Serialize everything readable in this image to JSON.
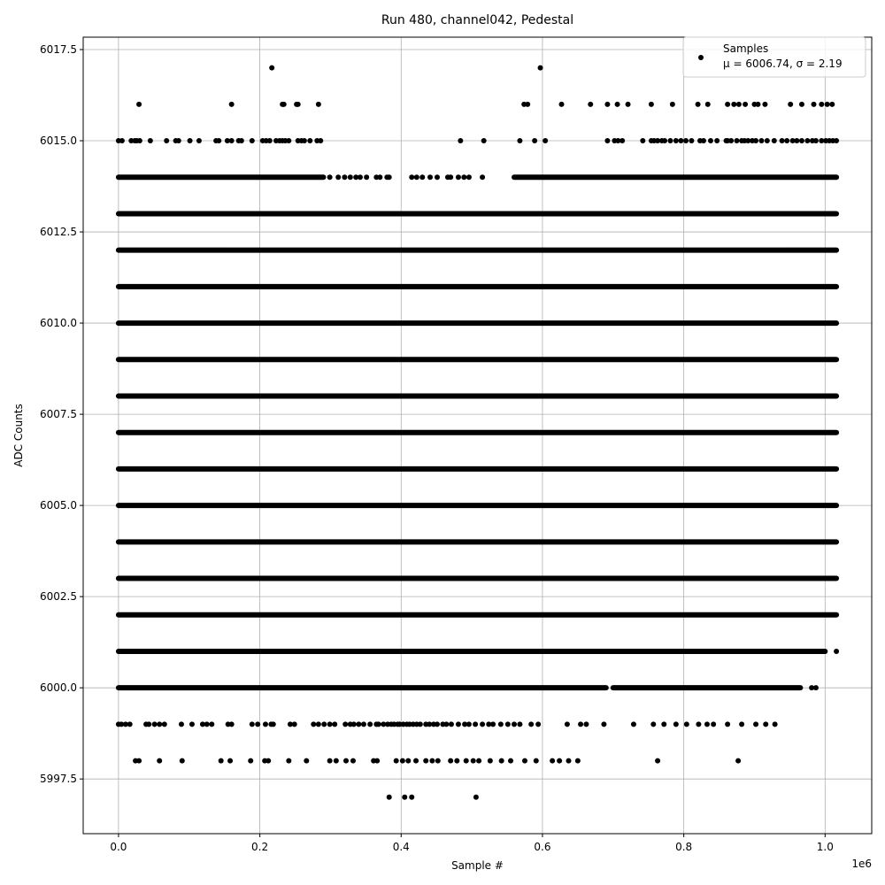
{
  "chart_data": {
    "type": "scatter",
    "title": "Run 480, channel042, Pedestal",
    "xlabel": "Sample #",
    "ylabel": "ADC Counts",
    "x_offset_label": "1e6",
    "xlim": [
      -50000,
      1066000
    ],
    "ylim": [
      5996.0,
      6017.84
    ],
    "xticks": [
      0,
      200000,
      400000,
      600000,
      800000,
      1000000
    ],
    "xtick_labels": [
      "0.0",
      "0.2",
      "0.4",
      "0.6",
      "0.8",
      "1.0"
    ],
    "yticks": [
      5997.5,
      6000.0,
      6002.5,
      6005.0,
      6007.5,
      6010.0,
      6012.5,
      6015.0,
      6017.5
    ],
    "ytick_labels": [
      "5997.5",
      "6000.0",
      "6002.5",
      "6005.0",
      "6007.5",
      "6010.0",
      "6012.5",
      "6015.0",
      "6017.5"
    ],
    "grid": true,
    "marker_color": "#000000",
    "legend": {
      "placement": "top-right",
      "entries": [
        {
          "label": "Samples",
          "stats": "μ = 6006.74, σ = 2.19"
        }
      ]
    },
    "rows": [
      {
        "y": 6017,
        "segments": [],
        "points": [
          217000,
          597000
        ]
      },
      {
        "y": 6016,
        "segments": [],
        "points": [
          29000,
          160000,
          232000,
          234000,
          252000,
          254000,
          283000,
          574000,
          579000,
          627000,
          668000,
          692000,
          706000,
          721000,
          754000,
          784000,
          820000,
          834000,
          862000,
          871000,
          878000,
          887000,
          900000,
          905000,
          915000,
          951000,
          967000,
          984000,
          995000,
          1003000,
          1010000
        ]
      },
      {
        "y": 6015,
        "segments": [],
        "points": [
          0,
          5000,
          18000,
          23000,
          26000,
          30000,
          45000,
          68000,
          81000,
          85000,
          101000,
          114000,
          138000,
          142000,
          154000,
          160000,
          170000,
          174000,
          189000,
          204000,
          209000,
          214000,
          223000,
          228000,
          232000,
          236000,
          241000,
          254000,
          259000,
          263000,
          271000,
          281000,
          286000,
          484000,
          517000,
          568000,
          589000,
          604000,
          692000,
          702000,
          707000,
          713000,
          742000,
          754000,
          758000,
          763000,
          769000,
          773000,
          781000,
          789000,
          796000,
          803000,
          811000,
          823000,
          828000,
          838000,
          847000,
          860000,
          862000,
          867000,
          875000,
          882000,
          886000,
          891000,
          897000,
          902000,
          910000,
          918000,
          928000,
          939000,
          946000,
          954000,
          960000,
          967000,
          975000,
          982000,
          987000,
          995000,
          1001000,
          1006000,
          1011000,
          1016000
        ]
      },
      {
        "y": 6014,
        "segments": [
          [
            0,
            290000
          ],
          [
            560000,
            1016000
          ]
        ],
        "points": [
          299000,
          311000,
          320000,
          328000,
          336000,
          342000,
          351000,
          365000,
          370000,
          380000,
          383000,
          415000,
          422000,
          430000,
          441000,
          451000,
          466000,
          470000,
          481000,
          489000,
          496000,
          515000
        ]
      },
      {
        "y": 6013,
        "segments": [
          [
            0,
            1016000
          ]
        ],
        "points": []
      },
      {
        "y": 6012,
        "segments": [
          [
            0,
            1016000
          ]
        ],
        "points": []
      },
      {
        "y": 6011,
        "segments": [
          [
            0,
            1016000
          ]
        ],
        "points": []
      },
      {
        "y": 6010,
        "segments": [
          [
            0,
            1016000
          ]
        ],
        "points": []
      },
      {
        "y": 6009,
        "segments": [
          [
            0,
            1016000
          ]
        ],
        "points": []
      },
      {
        "y": 6008,
        "segments": [
          [
            0,
            1016000
          ]
        ],
        "points": []
      },
      {
        "y": 6007,
        "segments": [
          [
            0,
            1016000
          ]
        ],
        "points": []
      },
      {
        "y": 6006,
        "segments": [
          [
            0,
            1016000
          ]
        ],
        "points": []
      },
      {
        "y": 6005,
        "segments": [
          [
            0,
            1016000
          ]
        ],
        "points": []
      },
      {
        "y": 6004,
        "segments": [
          [
            0,
            1016000
          ]
        ],
        "points": []
      },
      {
        "y": 6003,
        "segments": [
          [
            0,
            1016000
          ]
        ],
        "points": []
      },
      {
        "y": 6002,
        "segments": [
          [
            0,
            1016000
          ]
        ],
        "points": []
      },
      {
        "y": 6001,
        "segments": [
          [
            0,
            1000000
          ]
        ],
        "points": [
          1016000
        ]
      },
      {
        "y": 6000,
        "segments": [
          [
            0,
            690000
          ],
          [
            700000,
            965000
          ]
        ],
        "points": [
          981000,
          987000
        ]
      },
      {
        "y": 5999,
        "segments": [],
        "points": [
          0,
          4000,
          10000,
          16000,
          39000,
          43000,
          51000,
          58000,
          65000,
          89000,
          104000,
          119000,
          125000,
          132000,
          155000,
          160000,
          189000,
          197000,
          208000,
          216000,
          219000,
          243000,
          249000,
          276000,
          283000,
          291000,
          299000,
          306000,
          321000,
          328000,
          333000,
          340000,
          347000,
          356000,
          365000,
          368000,
          375000,
          381000,
          386000,
          390000,
          395000,
          398000,
          403000,
          408000,
          412000,
          417000,
          422000,
          427000,
          435000,
          440000,
          446000,
          451000,
          459000,
          464000,
          471000,
          481000,
          490000,
          496000,
          505000,
          515000,
          524000,
          530000,
          541000,
          551000,
          560000,
          568000,
          584000,
          594000,
          635000,
          654000,
          662000,
          687000,
          729000,
          757000,
          772000,
          789000,
          804000,
          821000,
          833000,
          842000,
          862000,
          882000,
          902000,
          916000,
          929000
        ]
      },
      {
        "y": 5998,
        "segments": [],
        "points": [
          24000,
          29000,
          58000,
          90000,
          145000,
          158000,
          187000,
          207000,
          212000,
          241000,
          266000,
          299000,
          308000,
          322000,
          332000,
          361000,
          366000,
          393000,
          402000,
          410000,
          421000,
          435000,
          444000,
          452000,
          470000,
          479000,
          492000,
          502000,
          510000,
          526000,
          542000,
          555000,
          575000,
          591000,
          614000,
          624000,
          637000,
          650000,
          763000,
          877000
        ]
      },
      {
        "y": 5997,
        "segments": [],
        "points": [
          383000,
          405000,
          415000,
          506000
        ]
      }
    ]
  }
}
